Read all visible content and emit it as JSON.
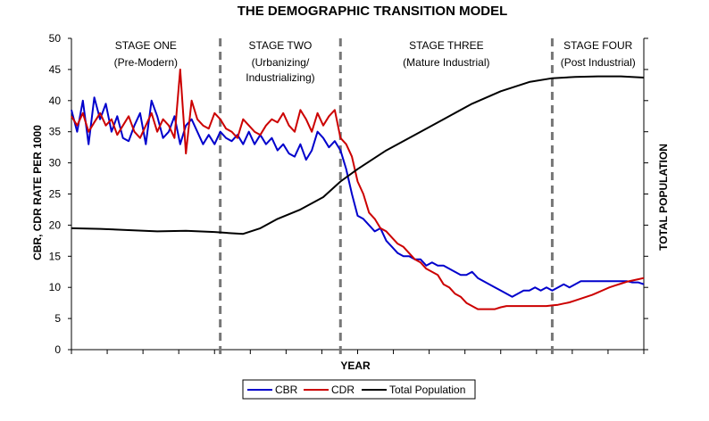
{
  "chart_data": {
    "type": "line",
    "title": "THE DEMOGRAPHIC TRANSITION MODEL",
    "xlabel": "YEAR",
    "ylabel": "CBR, CDR RATE PER 1000",
    "y2label": "TOTAL POPULATION",
    "ylim": [
      0,
      50
    ],
    "yticks": [
      "0",
      "5",
      "10",
      "15",
      "20",
      "25",
      "30",
      "35",
      "40",
      "45",
      "50"
    ],
    "xlim": [
      0,
      100
    ],
    "stages": [
      {
        "name": "STAGE ONE",
        "sub": "(Pre-Modern)"
      },
      {
        "name": "STAGE TWO",
        "sub": "(Urbanizing/",
        "sub2": "Industrializing)"
      },
      {
        "name": "STAGE THREE",
        "sub": "(Mature Industrial)"
      },
      {
        "name": "STAGE FOUR",
        "sub": "(Post Industrial)"
      }
    ],
    "stage_boundaries": [
      26,
      47,
      84
    ],
    "series": [
      {
        "name": "CBR",
        "color": "#0000cc",
        "x": [
          0,
          1,
          2,
          3,
          4,
          5,
          6,
          7,
          8,
          9,
          10,
          11,
          12,
          13,
          14,
          15,
          16,
          17,
          18,
          19,
          20,
          21,
          22,
          23,
          24,
          25,
          26,
          27,
          28,
          29,
          30,
          31,
          32,
          33,
          34,
          35,
          36,
          37,
          38,
          39,
          40,
          41,
          42,
          43,
          44,
          45,
          46,
          47,
          48,
          49,
          50,
          51,
          52,
          53,
          54,
          55,
          56,
          57,
          58,
          59,
          60,
          61,
          62,
          63,
          64,
          65,
          66,
          67,
          68,
          69,
          70,
          71,
          72,
          73,
          74,
          75,
          76,
          77,
          78,
          79,
          80,
          81,
          82,
          83,
          84,
          85,
          86,
          87,
          88,
          89,
          90,
          91,
          92,
          93,
          94,
          95,
          96,
          97,
          98,
          99,
          100
        ],
        "values": [
          38.5,
          35,
          40,
          33,
          40.5,
          37,
          39.5,
          35,
          37.5,
          34,
          33.5,
          36,
          38,
          33,
          40,
          37.5,
          34,
          35,
          37.5,
          33,
          36,
          37,
          35,
          33,
          34.5,
          33,
          35,
          34,
          33.5,
          34.5,
          33,
          35,
          33,
          34.5,
          33,
          34,
          32,
          33,
          31.5,
          31,
          33,
          30.5,
          32,
          35,
          34,
          32.5,
          33.5,
          32,
          29,
          25,
          21.5,
          21,
          20,
          19,
          19.5,
          17.5,
          16.5,
          15.5,
          15,
          15,
          14.5,
          14.5,
          13.5,
          14,
          13.5,
          13.5,
          13,
          12.5,
          12,
          12,
          12.5,
          11.5,
          11,
          10.5,
          10,
          9.5,
          9,
          8.5,
          9,
          9.5,
          9.5,
          10,
          9.5,
          10,
          9.5,
          10,
          10.5,
          10,
          10.5,
          11,
          11,
          11,
          11,
          11,
          11,
          11,
          11,
          11,
          10.8,
          10.8,
          10.5
        ]
      },
      {
        "name": "CDR",
        "color": "#cc0000",
        "x": [
          0,
          1,
          2,
          3,
          4,
          5,
          6,
          7,
          8,
          9,
          10,
          11,
          12,
          13,
          14,
          15,
          16,
          17,
          18,
          19,
          20,
          21,
          22,
          23,
          24,
          25,
          26,
          27,
          28,
          29,
          30,
          31,
          32,
          33,
          34,
          35,
          36,
          37,
          38,
          39,
          40,
          41,
          42,
          43,
          44,
          45,
          46,
          47,
          48,
          49,
          50,
          51,
          52,
          53,
          54,
          55,
          56,
          57,
          58,
          59,
          60,
          61,
          62,
          63,
          64,
          65,
          66,
          67,
          68,
          69,
          70,
          71,
          72,
          73,
          74,
          75,
          76,
          77,
          78,
          79,
          80,
          81,
          82,
          83,
          84,
          85,
          86,
          87,
          88,
          89,
          90,
          91,
          92,
          93,
          94,
          95,
          96,
          97,
          98,
          99,
          100
        ],
        "values": [
          37.5,
          36,
          38,
          35,
          36.5,
          38,
          36,
          37,
          34.5,
          36,
          37.5,
          35,
          34,
          36,
          38,
          35,
          37,
          36,
          34,
          45,
          31.5,
          40,
          37,
          36,
          35.5,
          38,
          37,
          35.5,
          35,
          34,
          37,
          36,
          35,
          34.5,
          36,
          37,
          36.5,
          38,
          36,
          35,
          38.5,
          37,
          35,
          38,
          36,
          37.5,
          38.5,
          34,
          33,
          31,
          27,
          25,
          22,
          21,
          19.5,
          19,
          18,
          17,
          16.5,
          15.5,
          14.5,
          14,
          13,
          12.5,
          12,
          10.5,
          10,
          9,
          8.5,
          7.5,
          7,
          6.5,
          6.5,
          6.5,
          6.5,
          6.8,
          7,
          7,
          7,
          7,
          7,
          7,
          7,
          7,
          7.1,
          7.2,
          7.4,
          7.6,
          7.9,
          8.2,
          8.5,
          8.8,
          9.2,
          9.6,
          10,
          10.3,
          10.6,
          10.9,
          11.1,
          11.3,
          11.5
        ],
        "note_points": []
      },
      {
        "name": "Total Population",
        "color": "#000000",
        "x": [
          0,
          5,
          10,
          15,
          20,
          25,
          28,
          30,
          33,
          36,
          40,
          44,
          47,
          50,
          55,
          60,
          65,
          70,
          75,
          80,
          84,
          88,
          92,
          96,
          100
        ],
        "values": [
          19.5,
          19.4,
          19.2,
          19.0,
          19.1,
          18.9,
          18.7,
          18.6,
          19.5,
          21,
          22.5,
          24.5,
          27,
          29,
          32,
          34.5,
          37,
          39.5,
          41.5,
          43.0,
          43.6,
          43.8,
          43.9,
          43.9,
          43.7
        ]
      }
    ],
    "legend": {
      "placement": "bottom",
      "entries": [
        "CBR",
        "CDR",
        "Total Population"
      ]
    },
    "grid": false
  }
}
